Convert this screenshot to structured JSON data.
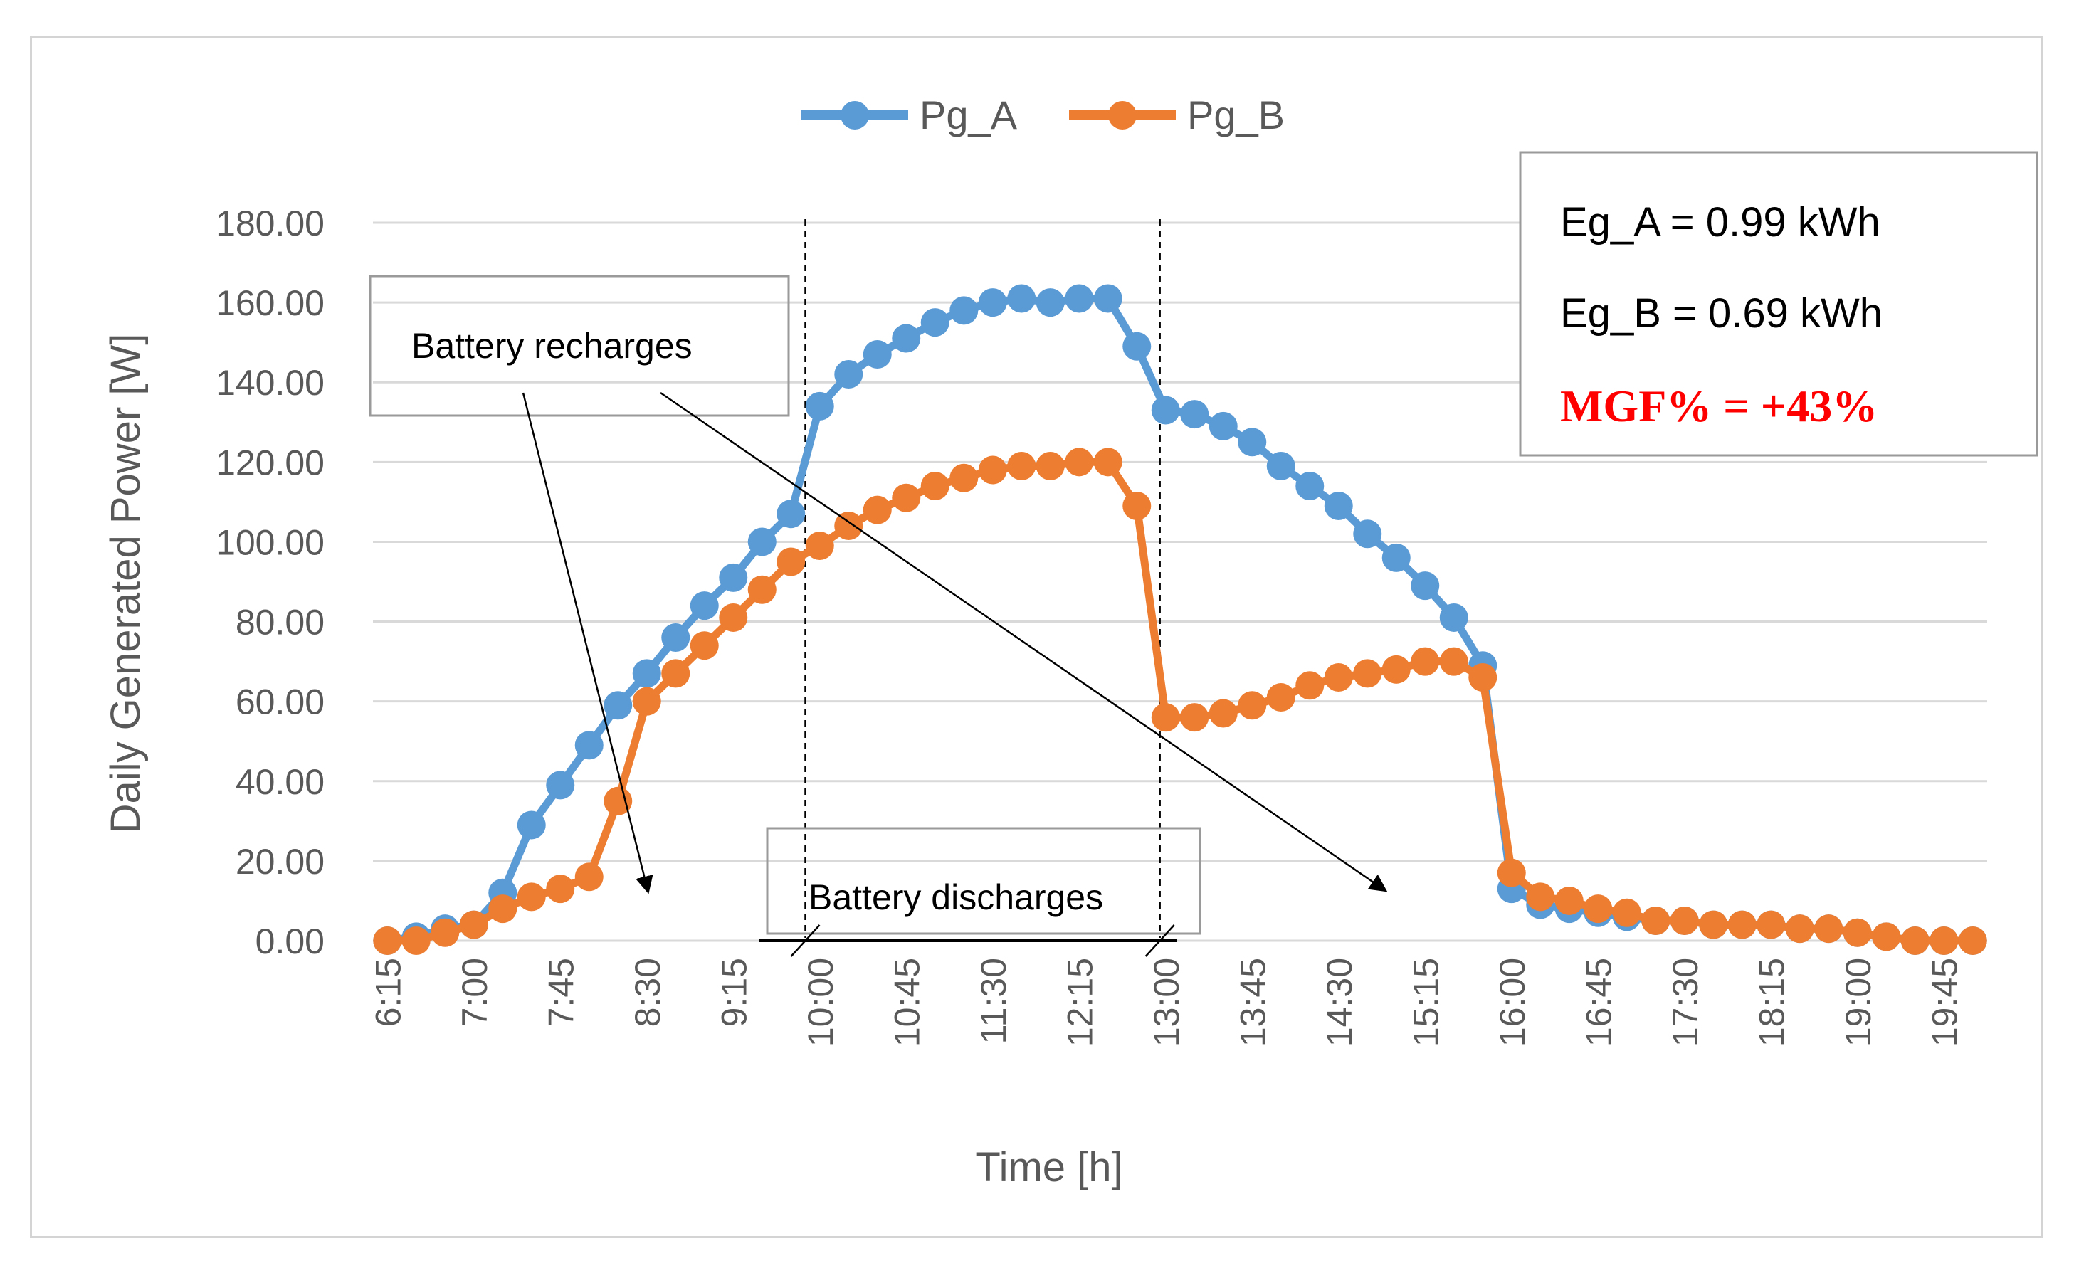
{
  "chart_data": {
    "type": "line",
    "title": "",
    "xlabel": "Time [h]",
    "ylabel": "Daily Generated Power [W]",
    "ylim": [
      0,
      180
    ],
    "y_ticks": [
      "0.00",
      "20.00",
      "40.00",
      "60.00",
      "80.00",
      "100.00",
      "120.00",
      "140.00",
      "160.00",
      "180.00"
    ],
    "x_tick_labels": [
      "6:15",
      "7:00",
      "7:45",
      "8:30",
      "9:15",
      "10:00",
      "10:45",
      "11:30",
      "12:15",
      "13:00",
      "13:45",
      "14:30",
      "15:15",
      "16:00",
      "16:45",
      "17:30",
      "18:15",
      "19:00",
      "19:45"
    ],
    "x_tick_every": 3,
    "grid": true,
    "legend_position": "top-center",
    "series": [
      {
        "name": "Pg_A",
        "color": "#5b9bd5",
        "values": [
          0,
          1,
          3,
          4,
          12,
          29,
          39,
          49,
          59,
          67,
          76,
          84,
          91,
          100,
          107,
          134,
          142,
          147,
          151,
          155,
          158,
          160,
          161,
          160,
          161,
          161,
          149,
          133,
          132,
          129,
          125,
          119,
          114,
          109,
          102,
          96,
          89,
          81,
          69,
          13,
          9,
          8,
          7,
          6,
          5,
          5,
          4,
          4,
          4,
          3,
          3,
          2,
          1,
          0,
          0,
          0
        ]
      },
      {
        "name": "Pg_B",
        "color": "#ed7d31",
        "values": [
          0,
          0,
          2,
          4,
          8,
          11,
          13,
          16,
          35,
          60,
          67,
          74,
          81,
          88,
          95,
          99,
          104,
          108,
          111,
          114,
          116,
          118,
          119,
          119,
          120,
          120,
          109,
          56,
          56,
          57,
          59,
          61,
          64,
          66,
          67,
          68,
          70,
          70,
          66,
          17,
          11,
          10,
          8,
          7,
          5,
          5,
          4,
          4,
          4,
          3,
          3,
          2,
          1,
          0,
          0,
          0
        ]
      }
    ],
    "annotations": {
      "recharge_label": "Battery recharges",
      "discharge_label": "Battery discharges",
      "info_lines": [
        "Eg_A = 0.99 kWh",
        "Eg_B = 0.69 kWh"
      ],
      "mgf": "MGF% = +43%",
      "discharge_start_index": 14.5,
      "discharge_end_index": 26.8,
      "recharge_arrow_targets": [
        {
          "x_index": 9,
          "y_value": 5
        },
        {
          "x_index": 34,
          "y_value": 5
        }
      ]
    }
  }
}
